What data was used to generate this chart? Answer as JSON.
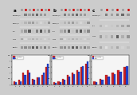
{
  "panels": [
    "a",
    "b",
    "c"
  ],
  "background": "#cccccc",
  "row_labels_a": [
    "p-Smad2/3",
    "Smad2/3",
    "p21",
    "CDK4",
    "B-actin"
  ],
  "row_labels_b": [
    "p-Smad2/3",
    "Smad2/3",
    "p21",
    "CDK4",
    "B-actin"
  ],
  "row_labels_c": [
    "p-Smad2/3",
    "p21",
    "CDK4",
    "B-actin"
  ],
  "num_lanes_a": 8,
  "num_lanes_b": 8,
  "num_lanes_c": 6,
  "bar_vals_a_red": [
    0.3,
    0.4,
    1.0,
    1.2,
    0.5,
    0.6,
    0.8,
    1.5
  ],
  "bar_vals_a_blue": [
    0.2,
    0.3,
    0.8,
    1.0,
    0.4,
    0.6,
    1.0,
    1.8
  ],
  "bar_vals_b_red": [
    0.2,
    0.3,
    0.5,
    0.8,
    1.0,
    1.2,
    1.5,
    1.8
  ],
  "bar_vals_b_blue": [
    0.1,
    0.2,
    0.4,
    0.7,
    0.9,
    1.1,
    1.6,
    2.0
  ],
  "bar_vals_c_red": [
    0.3,
    0.5,
    0.8,
    1.0,
    1.2,
    1.5
  ],
  "bar_vals_c_blue": [
    0.2,
    0.4,
    0.7,
    0.9,
    1.1,
    1.6
  ],
  "dot_red": "#CC0000",
  "dot_gray": "#999999",
  "bar_red": "#CC2222",
  "bar_blue": "#2244CC",
  "legend_red": "p21/actin",
  "legend_blue": "p21"
}
